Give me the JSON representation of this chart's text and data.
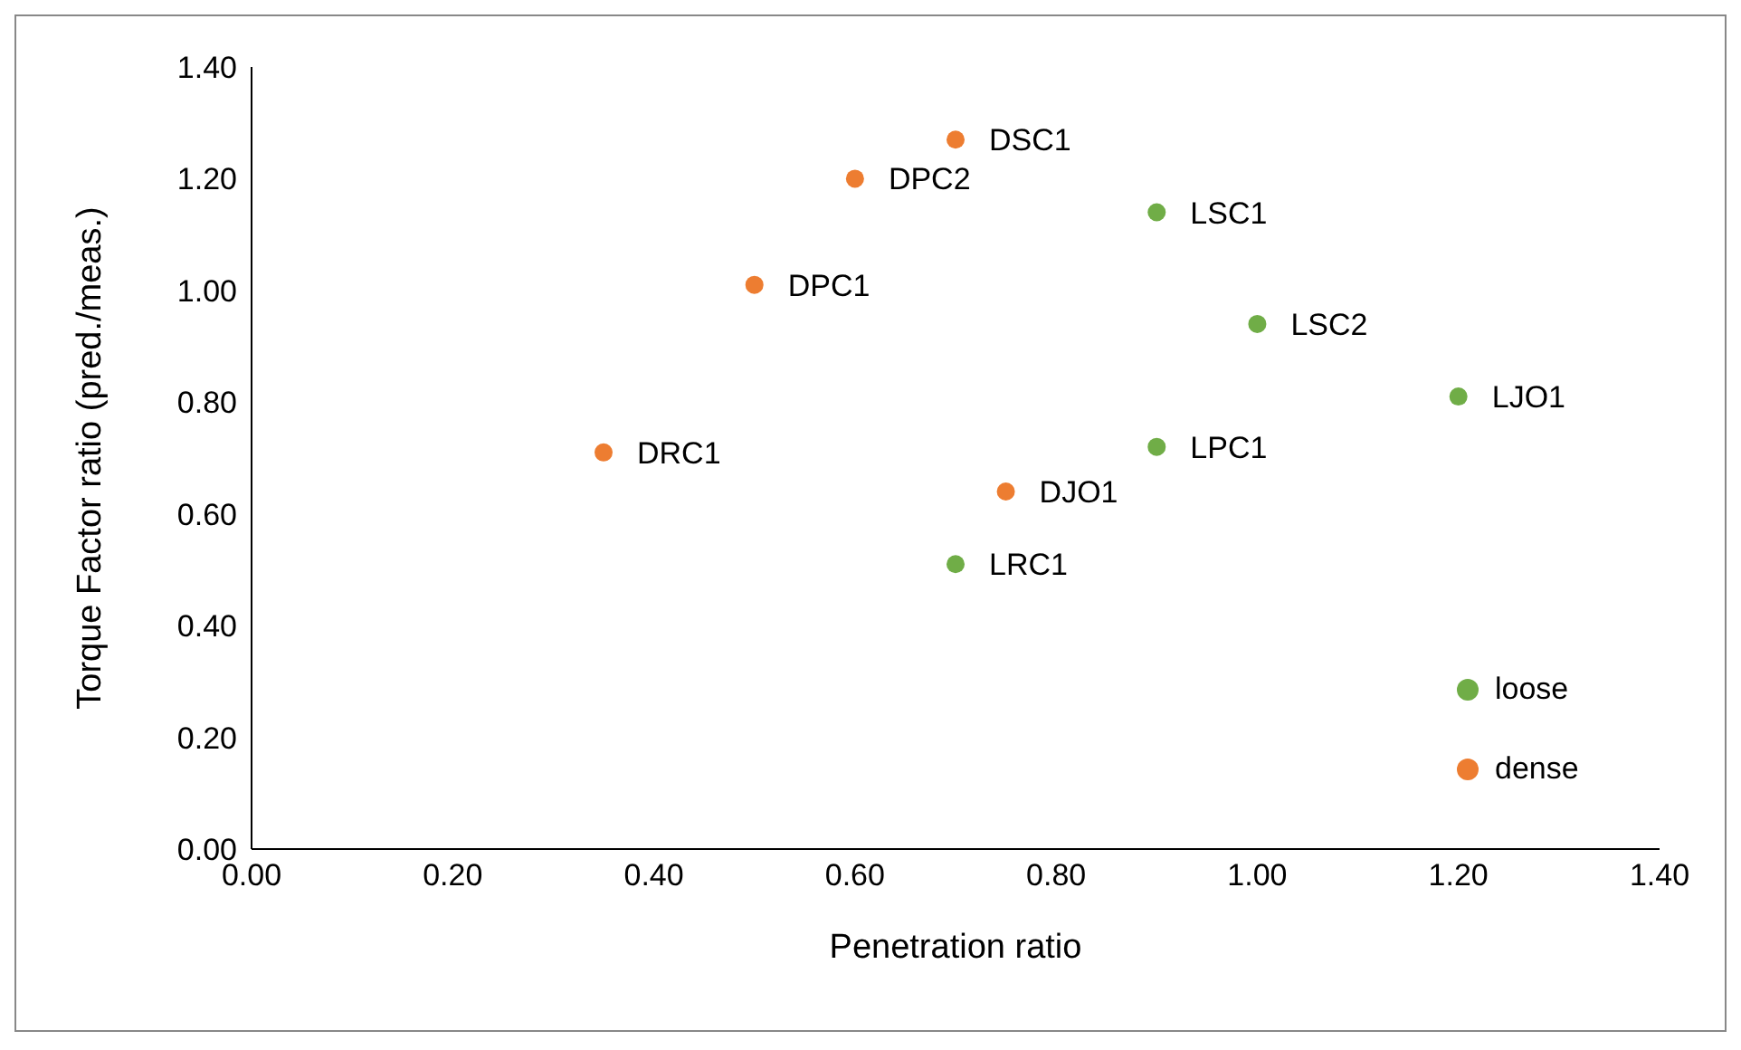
{
  "chart_data": {
    "type": "scatter",
    "xlabel": "Penetration ratio",
    "ylabel": "Torque Factor ratio (pred./meas.)",
    "xlim": [
      0,
      1.4
    ],
    "ylim": [
      0,
      1.4
    ],
    "xticks": [
      {
        "value": 0,
        "label": "0.00"
      },
      {
        "value": 0.2,
        "label": "0.20"
      },
      {
        "value": 0.4,
        "label": "0.40"
      },
      {
        "value": 0.6,
        "label": "0.60"
      },
      {
        "value": 0.8,
        "label": "0.80"
      },
      {
        "value": 1,
        "label": "1.00"
      },
      {
        "value": 1.2,
        "label": "1.20"
      },
      {
        "value": 1.4,
        "label": "1.40"
      }
    ],
    "yticks": [
      {
        "value": 0,
        "label": "0.00"
      },
      {
        "value": 0.2,
        "label": "0.20"
      },
      {
        "value": 0.4,
        "label": "0.40"
      },
      {
        "value": 0.6,
        "label": "0.60"
      },
      {
        "value": 0.8,
        "label": "0.80"
      },
      {
        "value": 1,
        "label": "1.00"
      },
      {
        "value": 1.2,
        "label": "1.20"
      },
      {
        "value": 1.4,
        "label": "1.40"
      }
    ],
    "grid": false,
    "legend": "bottom right",
    "marker": "circle",
    "series": [
      {
        "name": "loose",
        "color": "#70ad47",
        "x": [
          0.9,
          1.0,
          1.2,
          0.9,
          0.7
        ],
        "values": [
          1.14,
          0.94,
          0.81,
          0.72,
          0.51
        ],
        "value_labels": [
          "LSC1",
          "LSC2",
          "LJO1",
          "LPC1",
          "LRC1"
        ]
      },
      {
        "name": "dense",
        "color": "#ed7d31",
        "x": [
          0.7,
          0.6,
          0.5,
          0.35,
          0.75
        ],
        "values": [
          1.27,
          1.2,
          1.01,
          0.71,
          0.64
        ],
        "value_labels": [
          "DSC1",
          "DPC2",
          "DPC1",
          "DRC1",
          "DJO1"
        ]
      }
    ]
  }
}
